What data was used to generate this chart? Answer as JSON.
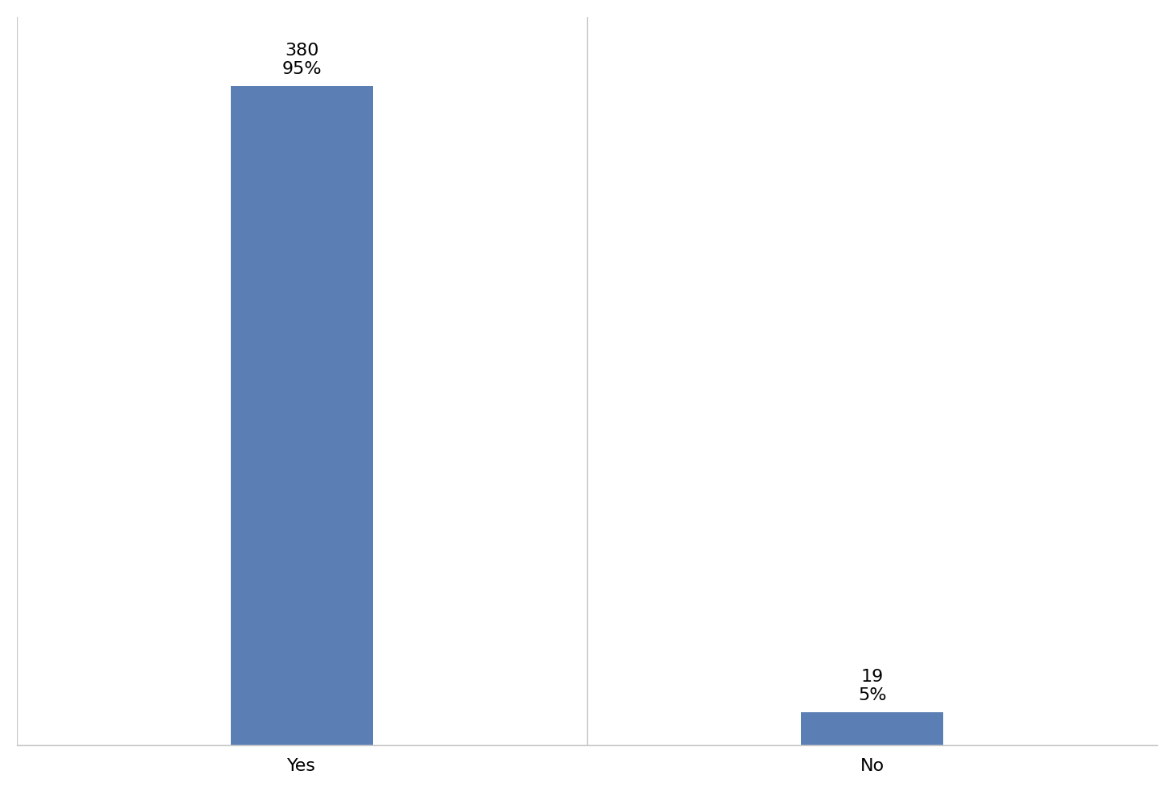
{
  "categories": [
    "Yes",
    "No"
  ],
  "values": [
    380,
    19
  ],
  "percentages": [
    "95%",
    "5%"
  ],
  "bar_color": "#5b7fb5",
  "background_color": "#ffffff",
  "ylim": [
    0,
    420
  ],
  "bar_width": 0.25,
  "tick_fontsize": 16,
  "annotation_fontsize": 16,
  "grid_color": "#c8c8c8",
  "spine_color": "#c8c8c8"
}
